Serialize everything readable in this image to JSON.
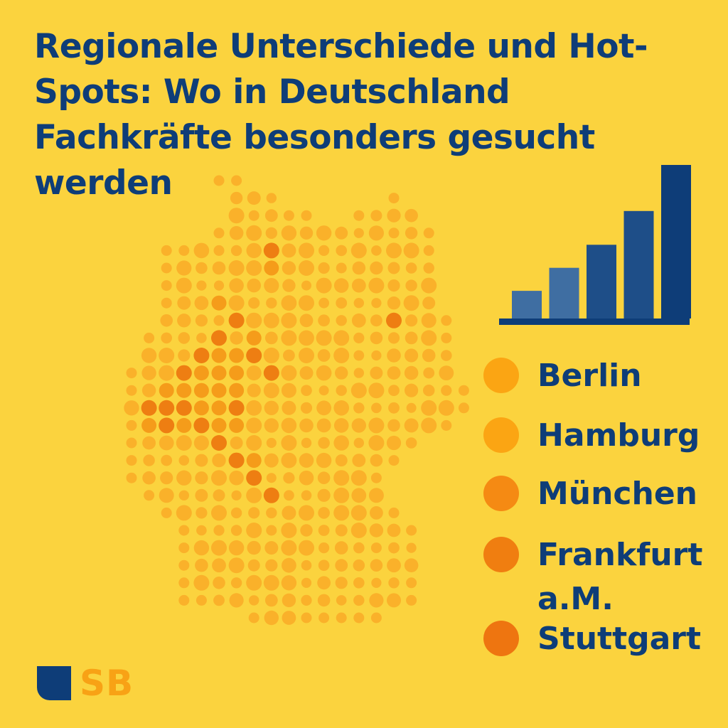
{
  "title": "Regionale Unterschiede und Hot-Spots: Wo in Deutschland Fachkräfte besonders gesucht werden",
  "colors": {
    "background": "#FBD33E",
    "text": "#0E3D78",
    "dot_light": "#FAB12A",
    "dot_medium": "#F59C1A",
    "dot_hot": "#EE7E12",
    "bar_light": "#3F6EA2",
    "bar_dark": "#0E3D78"
  },
  "map": {
    "country": "Deutschland",
    "icon": "germany-dot-map"
  },
  "bar_chart": {
    "icon": "growth-bar-chart",
    "relative_values": [
      0.18,
      0.33,
      0.48,
      0.7,
      1.0
    ]
  },
  "legend": [
    {
      "label": "Berlin",
      "color": "#FBA513"
    },
    {
      "label": "Hamburg",
      "color": "#FBA513"
    },
    {
      "label": "München",
      "color": "#F58A13"
    },
    {
      "label": "Frankfurt\na.M.",
      "color": "#F07E10"
    },
    {
      "label": "Stuttgart",
      "color": "#EE7510"
    }
  ],
  "logo": {
    "text": "SB"
  }
}
